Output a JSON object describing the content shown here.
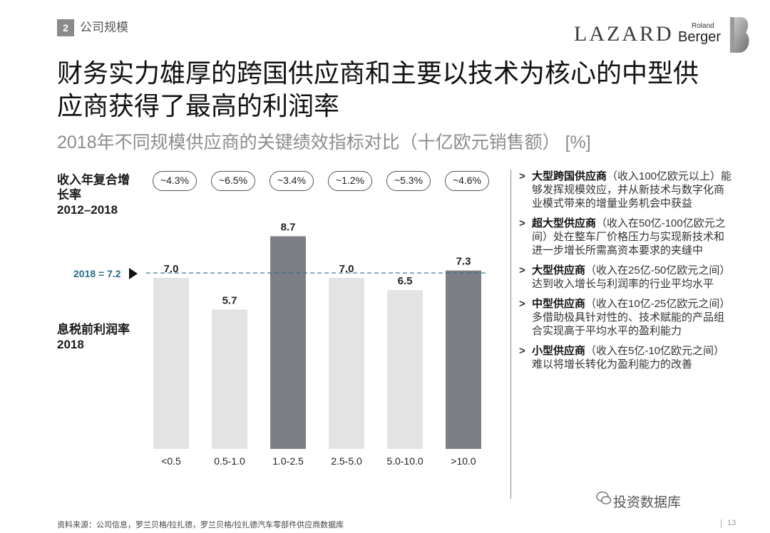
{
  "header": {
    "section_number": "2",
    "section_label": "公司规模",
    "logo_lazard": "LAZARD",
    "logo_roland": "Roland",
    "logo_berger": "Berger"
  },
  "title": "财务实力雄厚的跨国供应商和主要以技术为核心的中型供应商获得了最高的利润率",
  "subtitle": "2018年不同规模供应商的关键绩效指标对比（十亿欧元销售额） [%]",
  "labels": {
    "cagr": "收入年复合增长率",
    "cagr_period": "2012–2018",
    "ebit": "息税前利润率",
    "ebit_year": "2018",
    "reference": "2018 = 7.2"
  },
  "chart_data": {
    "type": "bar",
    "categories": [
      "<0.5",
      "0.5-1.0",
      "1.0-2.5",
      "2.5-5.0",
      "5.0-10.0",
      ">10.0"
    ],
    "values": [
      7.0,
      5.7,
      8.7,
      7.0,
      6.5,
      7.3
    ],
    "value_labels": [
      "7.0",
      "5.7",
      "8.7",
      "7.0",
      "6.5",
      "7.3"
    ],
    "cagr": [
      "~4.3%",
      "~6.5%",
      "~3.4%",
      "~1.2%",
      "~5.3%",
      "~4.6%"
    ],
    "highlighted": [
      false,
      false,
      true,
      false,
      false,
      true
    ],
    "reference_line": 7.2,
    "colors": {
      "light": "#e3e3e4",
      "dark": "#7c7f86",
      "reference": "#2a6b8a"
    }
  },
  "notes": [
    {
      "bold": "大型跨国供应商",
      "text": "（收入100亿欧元以上）能够发挥规模效应，并从新技术与数字化商业模式带来的增量业务机会中获益"
    },
    {
      "bold": "超大型供应商",
      "text": "（收入在50亿-100亿欧元之间）处在整车厂价格压力与实现新技术和进一步增长所需高资本要求的夹缝中"
    },
    {
      "bold": "大型供应商",
      "text": "（收入在25亿-50亿欧元之间）达到收入增长与利润率的行业平均水平"
    },
    {
      "bold": "中型供应商",
      "text": "（收入在10亿-25亿欧元之间）多借助极具针对性的、技术赋能的产品组合实现高于平均水平的盈利能力"
    },
    {
      "bold": "小型供应商",
      "text": "（收入在5亿-10亿欧元之间）难以将增长转化为盈利能力的改善"
    }
  ],
  "arrow_glyph": ">",
  "source": "资料来源：公司信息，罗兰贝格/拉扎德，罗兰贝格/拉扎德汽车零部件供应商数据库",
  "watermark": "投资数据库",
  "page_number": "13"
}
